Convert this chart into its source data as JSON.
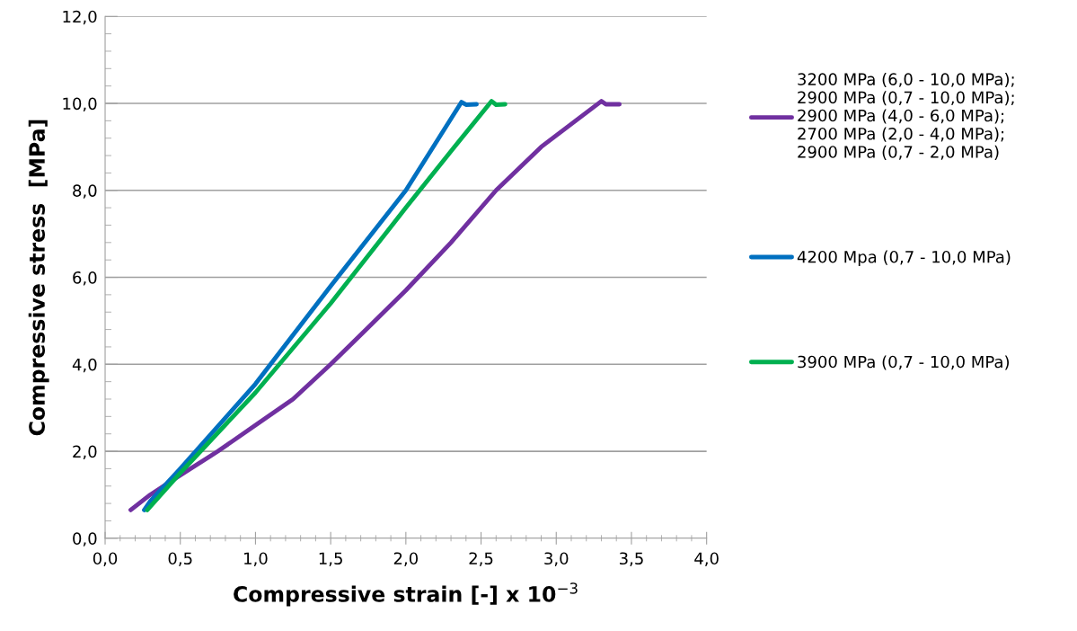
{
  "chart_data": {
    "type": "line",
    "xlabel": "Compressive strain [-] x 10$^{−3}$",
    "ylabel": "Compressive stress  [MPa]",
    "xlim": [
      0,
      4
    ],
    "ylim": [
      0,
      12
    ],
    "xticks": [
      {
        "value": 0,
        "label": "0,0"
      },
      {
        "value": 0.5,
        "label": "0,5"
      },
      {
        "value": 1,
        "label": "1,0"
      },
      {
        "value": 1.5,
        "label": "1,5"
      },
      {
        "value": 2,
        "label": "2,0"
      },
      {
        "value": 2.5,
        "label": "2,5"
      },
      {
        "value": 3,
        "label": "3,0"
      },
      {
        "value": 3.5,
        "label": "3,5"
      },
      {
        "value": 4,
        "label": "4,0"
      }
    ],
    "yticks": [
      {
        "value": 0,
        "label": "0,0"
      },
      {
        "value": 2,
        "label": "2,0"
      },
      {
        "value": 4,
        "label": "4,0"
      },
      {
        "value": 6,
        "label": "6,0"
      },
      {
        "value": 8,
        "label": "8,0"
      },
      {
        "value": 10,
        "label": "10,0"
      },
      {
        "value": 12,
        "label": "12,0"
      }
    ],
    "grid": "y",
    "legend": "right",
    "marker": "none",
    "line_style": "solid",
    "series": [
      {
        "name": "3200 MPa (6,0 - 10,0 MPa);\n2900 MPa (0,7 - 10,0 MPa);\n2900 MPa (4,0 - 6,0 MPa);\n2700 MPa (2,0 - 4,0 MPa);\n2900 MPa (0,7 - 2,0 MPa)",
        "color": "#7030a0",
        "x": [
          0.17,
          0.3,
          0.5,
          0.75,
          1.0,
          1.25,
          1.5,
          1.75,
          2.0,
          2.3,
          2.6,
          2.9,
          3.3,
          3.33,
          3.42
        ],
        "values": [
          0.65,
          1.0,
          1.45,
          2.0,
          2.6,
          3.2,
          4.0,
          4.85,
          5.7,
          6.8,
          8.0,
          9.0,
          10.05,
          9.98,
          9.98
        ]
      },
      {
        "name": "4200 Mpa (0,7 - 10,0 MPa)",
        "color": "#0070c0",
        "x": [
          0.26,
          0.3,
          0.5,
          1.0,
          1.5,
          2.0,
          2.37,
          2.4,
          2.47
        ],
        "values": [
          0.65,
          0.85,
          1.6,
          3.55,
          5.8,
          8.0,
          10.03,
          9.97,
          9.98
        ]
      },
      {
        "name": "3900 MPa (0,7 - 10,0 MPa)",
        "color": "#00b050",
        "x": [
          0.28,
          0.5,
          1.0,
          1.5,
          2.0,
          2.3,
          2.57,
          2.6,
          2.66
        ],
        "values": [
          0.65,
          1.5,
          3.35,
          5.4,
          7.6,
          8.9,
          10.05,
          9.97,
          9.98
        ]
      }
    ]
  }
}
